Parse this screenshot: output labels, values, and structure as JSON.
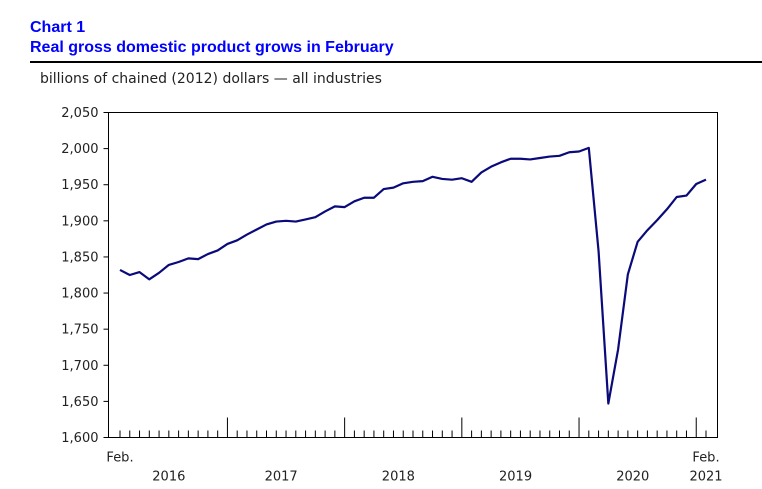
{
  "header": {
    "chart_number": "Chart 1",
    "title": "Real gross domestic product grows in February",
    "units": "billions of chained (2012) dollars — all industries"
  },
  "colors": {
    "title": "#0000ff",
    "line": "#0a0a7a",
    "axis": "#000000"
  },
  "chart_data": {
    "type": "line",
    "title": "Real gross domestic product grows in February",
    "ylabel": "billions of chained (2012) dollars — all industries",
    "xlabel": "",
    "ylim": [
      1600,
      2050
    ],
    "yticks": [
      "1,600",
      "1,650",
      "1,700",
      "1,750",
      "1,800",
      "1,850",
      "1,900",
      "1,950",
      "2,000",
      "2,050"
    ],
    "ytick_values": [
      1600,
      1650,
      1700,
      1750,
      1800,
      1850,
      1900,
      1950,
      2000,
      2050
    ],
    "start_label": "Feb.",
    "end_label_month": "Feb.",
    "end_label_year": "2021",
    "years": [
      "2016",
      "2017",
      "2018",
      "2019",
      "2020"
    ],
    "x_start": "2016-02",
    "x_end": "2021-02",
    "series": [
      {
        "name": "Real GDP, all industries",
        "values": [
          1832,
          1825,
          1829,
          1819,
          1828,
          1839,
          1843,
          1848,
          1847,
          1854,
          1859,
          1868,
          1873,
          1881,
          1888,
          1895,
          1899,
          1900,
          1899,
          1902,
          1905,
          1913,
          1920,
          1919,
          1927,
          1932,
          1932,
          1944,
          1946,
          1952,
          1954,
          1955,
          1961,
          1958,
          1957,
          1959,
          1954,
          1967,
          1975,
          1981,
          1986,
          1986,
          1985,
          1987,
          1989,
          1990,
          1995,
          1996,
          2001,
          1858,
          1647,
          1722,
          1826,
          1871,
          1887,
          1901,
          1916,
          1933,
          1935,
          1951,
          1957
        ]
      }
    ]
  }
}
